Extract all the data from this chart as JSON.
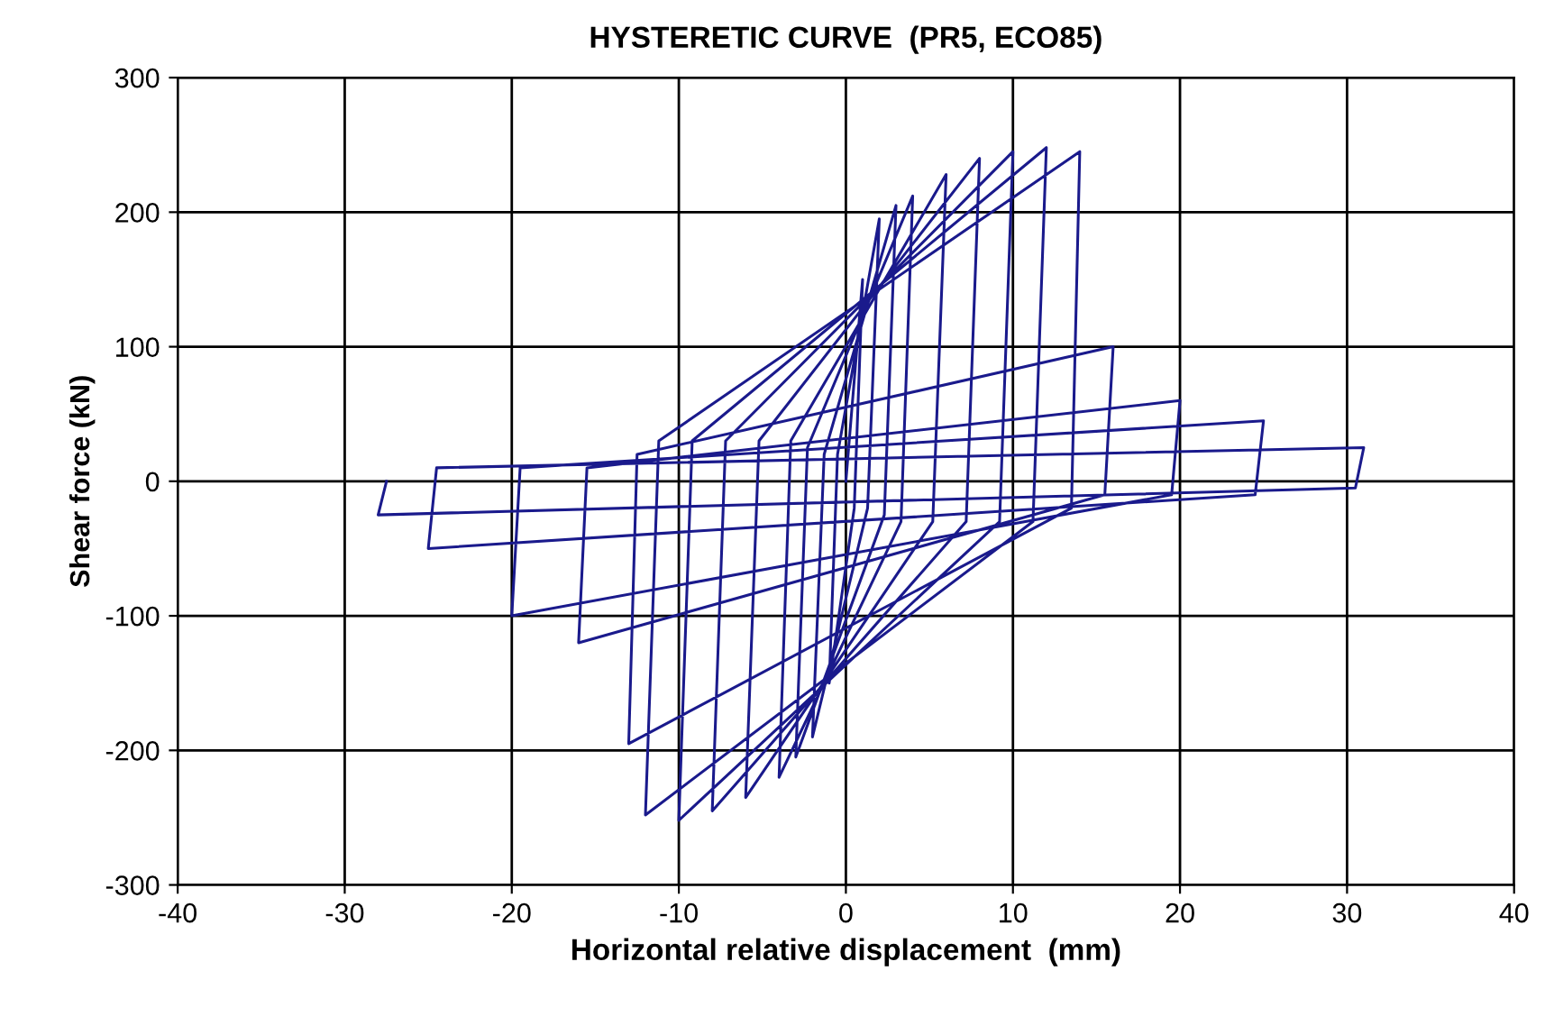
{
  "chart_data": {
    "type": "line",
    "title": "HYSTERETIC CURVE  (PR5, ECO85)",
    "xlabel": "Horizontal relative displacement  (mm)",
    "ylabel": "Shear force (kN)",
    "series": [
      {
        "color": "#1a1a8c",
        "x": [
          0,
          1,
          0.5,
          -1,
          -0.5,
          2,
          1.3,
          -2,
          -1.3,
          3,
          2.3,
          -3,
          -2.3,
          4,
          3.3,
          -4,
          -3.3,
          6,
          5.2,
          -6,
          -5.2,
          8,
          7.2,
          -8,
          -7.2,
          10,
          9.2,
          -10,
          -9.2,
          12,
          11.2,
          -12,
          -11.2,
          14,
          13.5,
          -13,
          -12.5,
          16,
          15.5,
          -16,
          -15.5,
          20,
          19.5,
          -20,
          -19.5,
          25,
          24.5,
          -25,
          -24.5,
          31,
          30.5,
          -28,
          -27.5
        ],
        "values": [
          0,
          150,
          -20,
          -150,
          20,
          195,
          -20,
          -190,
          20,
          205,
          -25,
          -205,
          25,
          212,
          -30,
          -220,
          30,
          228,
          -30,
          -235,
          30,
          240,
          -30,
          -245,
          30,
          245,
          -30,
          -252,
          30,
          248,
          -30,
          -248,
          30,
          245,
          -20,
          -195,
          20,
          100,
          -10,
          -120,
          10,
          60,
          -10,
          -100,
          10,
          45,
          -10,
          -50,
          10,
          25,
          -5,
          -25,
          0
        ]
      }
    ],
    "xlim": [
      -40,
      40
    ],
    "xticks": [
      -40,
      -30,
      -20,
      -10,
      0,
      10,
      20,
      30,
      40
    ],
    "ylim": [
      -300,
      300
    ],
    "yticks": [
      -300,
      -200,
      -100,
      0,
      100,
      200,
      300
    ],
    "grid": true,
    "legend": false,
    "marker": "none",
    "line_style": "solid"
  }
}
